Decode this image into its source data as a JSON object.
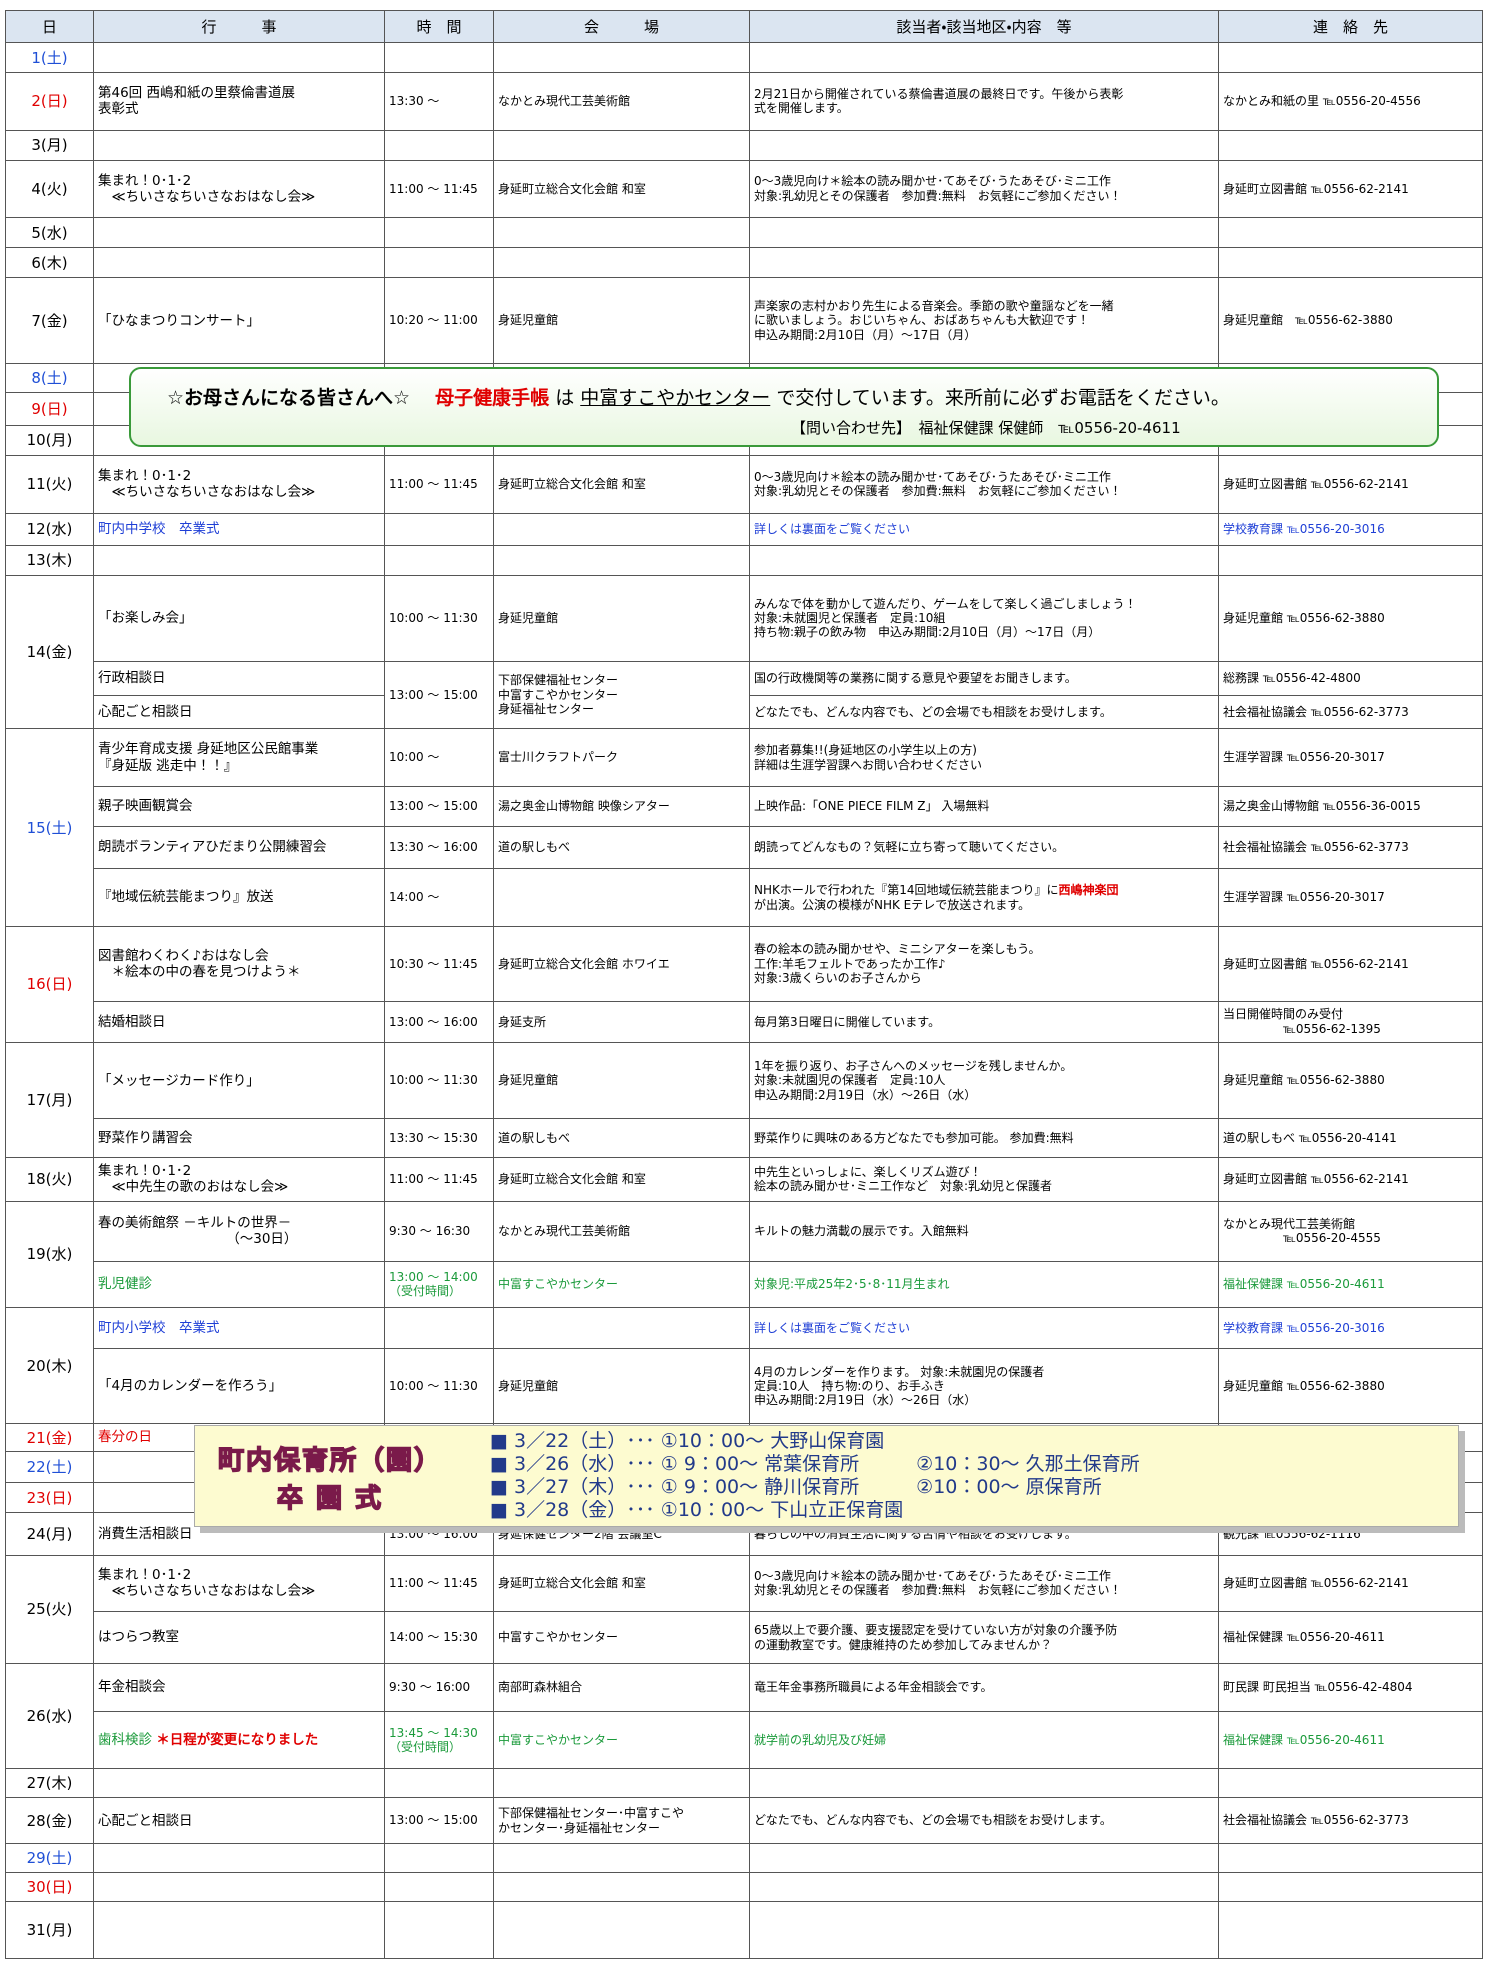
{
  "header": [
    "日",
    "行　　　事",
    "時　間",
    "会　　　場",
    "該当者・該当地区・内容　等",
    "連　絡　先"
  ],
  "days": [
    {
      "label": "1(土)",
      "color": "#1f4fd6",
      "groups": []
    },
    {
      "label": "2(日)",
      "color": "#e00000",
      "groups": [
        {
          "time": "13:30 ～",
          "venue": "なかとみ現代工芸美術館",
          "items": [
            {
              "event": "第46回 西嶋和紙の里蔡倫書道展\n表彰式",
              "details": "2月21日から開催されている蔡倫書道展の最終日です。午後から表彰\n式を開催します。",
              "contact": "なかとみ和紙の里 ℡0556-20-4556"
            }
          ]
        }
      ]
    },
    {
      "label": "3(月)",
      "groups": []
    },
    {
      "label": "4(火)",
      "groups": [
        {
          "time": "11:00 ～ 11:45",
          "venue": "身延町立総合文化会館 和室",
          "items": [
            {
              "event": "集まれ！0･1･2\n　≪ちいさなちいさなおはなし会≫",
              "details": "0～3歳児向け＊絵本の読み聞かせ･てあそび･うたあそび･ミニ工作\n対象:乳幼児とその保護者　参加費:無料　お気軽にご参加ください！",
              "contact": "身延町立図書館 ℡0556-62-2141"
            }
          ]
        }
      ]
    },
    {
      "label": "5(水)",
      "groups": []
    },
    {
      "label": "6(木)",
      "groups": []
    },
    {
      "label": "7(金)",
      "groups": [
        {
          "time": "10:20 ～ 11:00",
          "venue": "身延児童館",
          "items": [
            {
              "event": "「ひなまつりコンサート」",
              "details": "声楽家の志村かおり先生による音楽会。季節の歌や童謡などを一緒\nに歌いましょう。おじいちゃん、おばあちゃんも大歓迎です！\n申込み期間:2月10日（月）～17日（月）",
              "contact": "身延児童館　℡0556-62-3880"
            }
          ]
        }
      ]
    },
    {
      "label": "8(土)",
      "color": "#1f4fd6",
      "groups": []
    },
    {
      "label": "9(日)",
      "color": "#e00000",
      "groups": []
    },
    {
      "label": "10(月)",
      "groups": []
    },
    {
      "label": "11(火)",
      "groups": [
        {
          "time": "11:00 ～ 11:45",
          "venue": "身延町立総合文化会館 和室",
          "items": [
            {
              "event": "集まれ！0･1･2\n　≪ちいさなちいさなおはなし会≫",
              "details": "0～3歳児向け＊絵本の読み聞かせ･てあそび･うたあそび･ミニ工作\n対象:乳幼児とその保護者　参加費:無料　お気軽にご参加ください！",
              "contact": "身延町立図書館 ℡0556-62-2141"
            }
          ]
        }
      ]
    },
    {
      "label": "12(水)",
      "groups": [
        {
          "color": "#1f3fd6",
          "items": [
            {
              "event": "町内中学校　卒業式",
              "details": "詳しくは裏面をご覧ください",
              "contact": "学校教育課 ℡0556-20-3016"
            }
          ]
        }
      ]
    },
    {
      "label": "13(木)",
      "groups": []
    },
    {
      "label": "14(金)",
      "groups": [
        {
          "time": "10:00 ～ 11:30",
          "venue": "身延児童館",
          "items": [
            {
              "event": "「お楽しみ会」",
              "details": "みんなで体を動かして遊んだり、ゲームをして楽しく過ごしましょう！\n対象:未就園児と保護者　定員:10組\n持ち物:親子の飲み物　申込み期間:2月10日（月）～17日（月）",
              "contact": "身延児童館 ℡0556-62-3880"
            }
          ]
        },
        {
          "time": "13:00 ～ 15:00",
          "venue": "下部保健福祉センター\n中富すこやかセンター\n身延福祉センター",
          "items": [
            {
              "event": "行政相談日",
              "details": "国の行政機関等の業務に関する意見や要望をお聞きします。",
              "contact": "総務課 ℡0556-42-4800"
            },
            {
              "event": "心配ごと相談日",
              "details": "どなたでも、どんな内容でも、どの会場でも相談をお受けします。",
              "contact": "社会福祉協議会 ℡0556-62-3773"
            }
          ]
        }
      ]
    },
    {
      "label": "15(土)",
      "color": "#1f4fd6",
      "groups": [
        {
          "time": "10:00 ～",
          "venue": "富士川クラフトパーク",
          "items": [
            {
              "event": "青少年育成支援 身延地区公民館事業\n『身延版 逃走中！！』",
              "details": "参加者募集!!(身延地区の小学生以上の方)\n詳細は生涯学習課へお問い合わせください",
              "contact": "生涯学習課 ℡0556-20-3017"
            }
          ]
        },
        {
          "time": "13:00 ～ 15:00",
          "venue": "湯之奥金山博物館 映像シアター",
          "items": [
            {
              "event": "親子映画観賞会",
              "details": "上映作品:「ONE PIECE FILM Z」 入場無料",
              "contact": "湯之奥金山博物館 ℡0556-36-0015"
            }
          ]
        },
        {
          "time": "13:30 ～ 16:00",
          "venue": "道の駅しもべ",
          "items": [
            {
              "event": "朗読ボランティアひだまり公開練習会",
              "details": "朗読ってどんなもの？気軽に立ち寄って聴いてください。",
              "contact": "社会福祉協議会 ℡0556-62-3773"
            }
          ]
        },
        {
          "time": "14:00 ～",
          "items": [
            {
              "event": "『地域伝統芸能まつり』放送",
              "details": [
                {
                  "text": "NHKホールで行われた『第14回地域伝統芸能まつり』に"
                },
                {
                  "text": "西嶋神楽団",
                  "color": "#e00000"
                },
                {
                  "text": "\nが出演。公演の模様がNHK Eテレで放送されます。"
                }
              ],
              "contact": "生涯学習課 ℡0556-20-3017"
            }
          ]
        }
      ]
    },
    {
      "label": "16(日)",
      "color": "#e00000",
      "groups": [
        {
          "time": "10:30 ～ 11:45",
          "venue": "身延町立総合文化会館 ホワイエ",
          "items": [
            {
              "event": "図書館わくわく♪おはなし会\n　＊絵本の中の春を見つけよう＊",
              "details": "春の絵本の読み聞かせや、ミニシアターを楽しもう。\n工作:羊毛フェルトであったか工作♪\n対象:3歳くらいのお子さんから",
              "contact": "身延町立図書館 ℡0556-62-2141"
            }
          ]
        },
        {
          "time": "13:00 ～ 16:00",
          "venue": "身延支所",
          "items": [
            {
              "event": "結婚相談日",
              "details": "毎月第3日曜日に開催しています。",
              "contact": "当日開催時間のみ受付\n　　　　　℡0556-62-1395"
            }
          ]
        }
      ]
    },
    {
      "label": "17(月)",
      "groups": [
        {
          "time": "10:00 ～ 11:30",
          "venue": "身延児童館",
          "items": [
            {
              "event": "「メッセージカード作り」",
              "details": "1年を振り返り、お子さんへのメッセージを残しませんか。\n対象:未就園児の保護者　定員:10人\n申込み期間:2月19日（水）～26日（水）",
              "contact": "身延児童館 ℡0556-62-3880"
            }
          ]
        },
        {
          "time": "13:30 ～ 15:30",
          "venue": "道の駅しもべ",
          "items": [
            {
              "event": "野菜作り講習会",
              "details": "野菜作りに興味のある方どなたでも参加可能。 参加費:無料",
              "contact": "道の駅しもべ ℡0556-20-4141"
            }
          ]
        }
      ]
    },
    {
      "label": "18(火)",
      "groups": [
        {
          "time": "11:00 ～ 11:45",
          "venue": "身延町立総合文化会館 和室",
          "items": [
            {
              "event": "集まれ！0･1･2\n　≪中先生の歌のおはなし会≫",
              "details": "中先生といっしょに、楽しくリズム遊び！\n絵本の読み聞かせ･ミニ工作など　対象:乳幼児と保護者",
              "contact": "身延町立図書館 ℡0556-62-2141"
            }
          ]
        }
      ]
    },
    {
      "label": "19(水)",
      "groups": [
        {
          "time": "9:30 ～ 16:30",
          "venue": "なかとみ現代工芸美術館",
          "items": [
            {
              "event": "春の美術館祭 －キルトの世界－\n　　　　　　　　　　（～30日）",
              "details": "キルトの魅力満載の展示です。入館無料",
              "contact": "なかとみ現代工芸美術館\n　　　　　℡0556-20-4555"
            }
          ]
        },
        {
          "color": "#1a9a3a",
          "time": "13:00 ～ 14:00\n（受付時間）",
          "venue": "中富すこやかセンター",
          "items": [
            {
              "event": "乳児健診",
              "details": "対象児:平成25年2･5･8･11月生まれ",
              "contact": "福祉保健課 ℡0556-20-4611"
            }
          ]
        }
      ]
    },
    {
      "label": "20(木)",
      "groups": [
        {
          "color": "#1f3fd6",
          "items": [
            {
              "event": "町内小学校　卒業式",
              "details": "詳しくは裏面をご覧ください",
              "contact": "学校教育課 ℡0556-20-3016"
            }
          ]
        },
        {
          "time": "10:00 ～ 11:30",
          "venue": "身延児童館",
          "items": [
            {
              "event": "「4月のカレンダーを作ろう」",
              "details": "4月のカレンダーを作ります。 対象:未就園児の保護者\n定員:10人　持ち物:のり、お手ふき\n申込み期間:2月19日（水）～26日（水）",
              "contact": "身延児童館 ℡0556-62-3880"
            }
          ]
        }
      ]
    },
    {
      "label": "21(金)",
      "color": "#e00000",
      "groups": [
        {
          "color": "#e00000",
          "items": [
            {
              "event": "春分の日"
            }
          ]
        }
      ]
    },
    {
      "label": "22(土)",
      "color": "#1f4fd6",
      "groups": []
    },
    {
      "label": "23(日)",
      "color": "#e00000",
      "groups": []
    },
    {
      "label": "24(月)",
      "groups": [
        {
          "time": "13:00 ～ 16:00",
          "venue": "身延保健センター2階 会議室C",
          "items": [
            {
              "event": "消費生活相談日",
              "details": "暮らしの中の消費生活に関する苦情や相談をお受けします。",
              "contact": "観光課 ℡0556-62-1116"
            }
          ]
        }
      ]
    },
    {
      "label": "25(火)",
      "groups": [
        {
          "time": "11:00 ～ 11:45",
          "venue": "身延町立総合文化会館 和室",
          "items": [
            {
              "event": "集まれ！0･1･2\n　≪ちいさなちいさなおはなし会≫",
              "details": "0～3歳児向け＊絵本の読み聞かせ･てあそび･うたあそび･ミニ工作\n対象:乳幼児とその保護者　参加費:無料　お気軽にご参加ください！",
              "contact": "身延町立図書館 ℡0556-62-2141"
            }
          ]
        },
        {
          "time": "14:00 ～ 15:30",
          "venue": "中富すこやかセンター",
          "items": [
            {
              "event": "はつらつ教室",
              "details": "65歳以上で要介護、要支援認定を受けていない方が対象の介護予防\nの運動教室です。健康維持のため参加してみませんか？",
              "contact": "福祉保健課 ℡0556-20-4611"
            }
          ]
        }
      ]
    },
    {
      "label": "26(水)",
      "groups": [
        {
          "time": "9:30 ～ 16:00",
          "venue": "南部町森林組合",
          "items": [
            {
              "event": "年金相談会",
              "details": "竜王年金事務所職員による年金相談会です。",
              "contact": "町民課 町民担当 ℡0556-42-4804"
            }
          ]
        },
        {
          "color": "#1a9a3a",
          "time": "13:45 ～ 14:30\n（受付時間）",
          "venue": "中富すこやかセンター",
          "items": [
            {
              "event": [
                {
                  "text": "歯科検診 "
                },
                {
                  "text": "＊日程が変更になりました",
                  "color": "#e00000"
                }
              ],
              "details": "就学前の乳幼児及び妊婦",
              "contact": "福祉保健課 ℡0556-20-4611"
            }
          ]
        }
      ]
    },
    {
      "label": "27(木)",
      "groups": []
    },
    {
      "label": "28(金)",
      "groups": [
        {
          "time": "13:00 ～ 15:00",
          "venue": "下部保健福祉センター･中富すこや\nかセンター･身延福祉センター",
          "items": [
            {
              "event": "心配ごと相談日",
              "details": "どなたでも、どんな内容でも、どの会場でも相談をお受けします。",
              "contact": "社会福祉協議会 ℡0556-62-3773"
            }
          ]
        }
      ]
    },
    {
      "label": "29(土)",
      "color": "#1f4fd6",
      "groups": []
    },
    {
      "label": "30(日)",
      "color": "#e00000",
      "groups": []
    },
    {
      "label": "31(月)",
      "groups": []
    }
  ],
  "notice": {
    "title": "☆お母さんになる皆さんへ☆",
    "item": "母子健康手帳",
    "particle": "は",
    "place": "中富すこやかセンター",
    "text": "で交付しています。来所前に必ずお電話をください。",
    "contact": "【問い合わせ先】　福祉保健課 保健師　℡0556-20-4611"
  },
  "graduation": {
    "title": "町内保育所（園）",
    "subtitle": "卒 園 式",
    "lines": [
      "■ 3／22（土）･･･ ①10：00～ 大野山保育園",
      "■ 3／26（水）･･･ ① 9：00～ 常葉保育所　　　②10：30～ 久那土保育所",
      "■ 3／27（木）･･･ ① 9：00～ 静川保育所　　　②10：00～ 原保育所",
      "■ 3／28（金）･･･ ①10：00～ 下山立正保育園"
    ]
  }
}
